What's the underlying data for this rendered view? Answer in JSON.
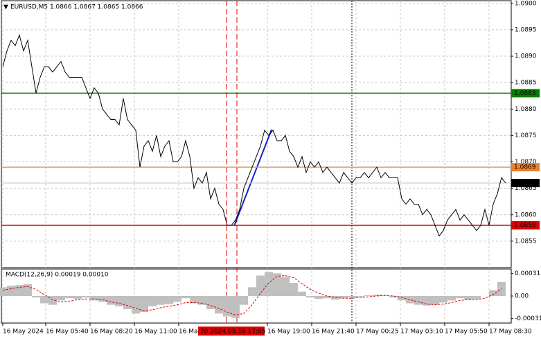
{
  "chart_data": [
    {
      "type": "line",
      "title": "EURUSD,M5  1.0866 1.0867 1.0865 1.0866",
      "color": "#000000",
      "values": [
        1.0888,
        1.0891,
        1.0893,
        1.0892,
        1.0894,
        1.0891,
        1.0893,
        1.0888,
        1.0883,
        1.0886,
        1.0888,
        1.0888,
        1.0887,
        1.0888,
        1.0889,
        1.0887,
        1.0886,
        1.0886,
        1.0886,
        1.0886,
        1.0884,
        1.0882,
        1.0884,
        1.0883,
        1.088,
        1.0879,
        1.0878,
        1.0878,
        1.0877,
        1.0882,
        1.0878,
        1.0877,
        1.0876,
        1.0869,
        1.0873,
        1.0874,
        1.0872,
        1.0875,
        1.0871,
        1.0873,
        1.0874,
        1.087,
        1.087,
        1.0871,
        1.0874,
        1.0871,
        1.0865,
        1.0867,
        1.0866,
        1.0868,
        1.0863,
        1.0865,
        1.0862,
        1.0861,
        1.0858,
        1.0858,
        1.0859,
        1.0861,
        1.0865,
        1.0867,
        1.0869,
        1.0871,
        1.0873,
        1.0876,
        1.0875,
        1.0876,
        1.0874,
        1.0874,
        1.0875,
        1.0872,
        1.0871,
        1.0869,
        1.0871,
        1.0868,
        1.087,
        1.0869,
        1.087,
        1.0868,
        1.0869,
        1.0868,
        1.0867,
        1.0866,
        1.0868,
        1.0867,
        1.0866,
        1.0867,
        1.0867,
        1.0868,
        1.0867,
        1.0868,
        1.0869,
        1.0867,
        1.0868,
        1.0867,
        1.0867,
        1.0867,
        1.0863,
        1.0862,
        1.0863,
        1.0862,
        1.0862,
        1.086,
        1.0861,
        1.086,
        1.0858,
        1.0856,
        1.0857,
        1.0859,
        1.086,
        1.0861,
        1.0859,
        1.086,
        1.0859,
        1.0858,
        1.0857,
        1.0858,
        1.0861,
        1.0858,
        1.0862,
        1.0864,
        1.0867,
        1.0866
      ],
      "xlim": [
        0,
        121
      ],
      "xticks": [
        {
          "value": 0,
          "label": "16 May 2024"
        },
        {
          "value": 10.33,
          "label": "16 May 05:40"
        },
        {
          "value": 21,
          "label": "16 May 08:20"
        },
        {
          "value": 31.67,
          "label": "16 May 11:00"
        },
        {
          "value": 42.33,
          "label": "16 May"
        },
        {
          "value": 63.67,
          "label": "16 May 19:00"
        },
        {
          "value": 74.33,
          "label": "16 May 21:40"
        },
        {
          "value": 85,
          "label": "17 May 00:25"
        },
        {
          "value": 95.67,
          "label": "17 May 03:10"
        },
        {
          "value": 106.33,
          "label": "17 May 05:50"
        },
        {
          "value": 117,
          "label": "17 May 08:30"
        }
      ],
      "ylim": [
        1.085,
        1.09005
      ],
      "yticks": [
        {
          "value": 1.09,
          "label": "1.0900"
        },
        {
          "value": 1.0895,
          "label": "1.0895"
        },
        {
          "value": 1.089,
          "label": "1.0890"
        },
        {
          "value": 1.0885,
          "label": "1.0885"
        },
        {
          "value": 1.088,
          "label": "1.0880"
        },
        {
          "value": 1.0875,
          "label": "1.0875"
        },
        {
          "value": 1.087,
          "label": "1.0870"
        },
        {
          "value": 1.0865,
          "label": "1.0865"
        },
        {
          "value": 1.086,
          "label": "1.0860"
        },
        {
          "value": 1.0855,
          "label": "1.0855"
        }
      ],
      "grid": true,
      "levels": [
        {
          "value": 1.0883,
          "color": "#008000",
          "label_color": "#008000"
        },
        {
          "value": 1.0869,
          "color": "#d9a066",
          "label_color": "#f07f2a"
        },
        {
          "value": 1.0866,
          "color": "#c0c0c0",
          "label_color": "#000000"
        },
        {
          "value": 1.0858,
          "color": "#e00000",
          "label_color": "#e00000"
        }
      ],
      "crosshair_label": "20 2024.05.16 17:05"
    },
    {
      "type": "macd",
      "title": "MACD(12,26,9) 0.00019 0.00010",
      "color": "#c0c0c0",
      "values": [
        0.00012,
        0.00014,
        0.00015,
        0.00016,
        -2e-05,
        -0.0001,
        -0.00012,
        -6e-05,
        -3e-05,
        -4e-05,
        -2e-05,
        -6e-05,
        -8e-05,
        -0.00012,
        -0.00014,
        -0.00018,
        -0.00024,
        -0.00022,
        -0.00014,
        -0.00012,
        -0.00011,
        -8e-05,
        -3e-05,
        -0.0001,
        -0.00012,
        -0.00018,
        -0.00024,
        -0.00028,
        -0.0003,
        -0.00012,
        0.00012,
        0.00028,
        0.00033,
        0.00031,
        0.00026,
        0.00018,
        6e-05,
        -2e-05,
        -4e-05,
        -3e-05,
        -5e-05,
        -3e-05,
        -2e-05,
        -1e-05,
        1e-05,
        2e-05,
        1e-05,
        -2e-05,
        -6e-05,
        -0.0001,
        -0.00012,
        -0.00013,
        -0.00012,
        -9e-05,
        -6e-05,
        -3e-05,
        -5e-05,
        -4e-05,
        0,
        8e-05,
        0.00019
      ],
      "signal": {
        "color": "#e00000",
        "values": [
          8e-05,
          0.0001,
          0.00012,
          0.00013,
          9e-05,
          2e-05,
          -5e-05,
          -8e-05,
          -7e-05,
          -5e-05,
          -4e-05,
          -4e-05,
          -5e-05,
          -8e-05,
          -0.0001,
          -0.00013,
          -0.00017,
          -0.0002,
          -0.00019,
          -0.00016,
          -0.00014,
          -0.00012,
          -9e-05,
          -9e-05,
          -0.0001,
          -0.00013,
          -0.00017,
          -0.00022,
          -0.00026,
          -0.00024,
          -0.00012,
          4e-05,
          0.00018,
          0.00027,
          0.00028,
          0.00025,
          0.00017,
          9e-05,
          4e-05,
          0,
          -2e-05,
          -3e-05,
          -3e-05,
          -2e-05,
          -1e-05,
          0,
          1e-05,
          0,
          -2e-05,
          -5e-05,
          -8e-05,
          -0.00011,
          -0.00012,
          -0.00011,
          -9e-05,
          -6e-05,
          -5e-05,
          -5e-05,
          -3e-05,
          2e-05,
          0.0001
        ]
      },
      "xlim": [
        0,
        60
      ],
      "ylim": [
        -0.00037,
        0.00037
      ],
      "yticks": [
        0.00031,
        {
          "value": 0,
          "label": "0.00"
        },
        -0.00031
      ]
    }
  ]
}
